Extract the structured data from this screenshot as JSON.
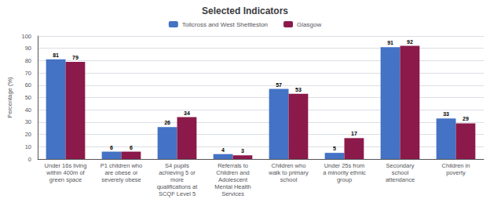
{
  "chart_data": {
    "type": "bar",
    "title": "Selected Indicators",
    "ylabel": "Percentage (%)",
    "categories": [
      "Under 16s living\nwithin 400m of\ngreen space",
      "P1 children who\nare obese or\nseverely obese",
      "S4 pupils\nachieving 5 or\nmore\nqualifications at\nSCQF Level 5",
      "Referrals to\nChildren and\nAdolescent\nMental Health\nServices",
      "Children who\nwalk to primary\nschool",
      "Under 25s from\na minority ethnic\ngroup",
      "Secondary\nschool\nattendance",
      "Children in\npoverty"
    ],
    "series": [
      {
        "name": "Tollcross and West Shettleston",
        "color": "#4472C4",
        "values": [
          81,
          6,
          26,
          4,
          57,
          5,
          91,
          33
        ]
      },
      {
        "name": "Glasgow",
        "color": "#8B1A4A",
        "values": [
          79,
          6,
          34,
          3,
          53,
          17,
          92,
          29
        ]
      }
    ],
    "ylim": [
      0,
      100
    ],
    "yticks": [
      0,
      10,
      20,
      30,
      40,
      50,
      60,
      70,
      80,
      90,
      100
    ],
    "grid": true,
    "data_labels": true,
    "legend": "top"
  }
}
